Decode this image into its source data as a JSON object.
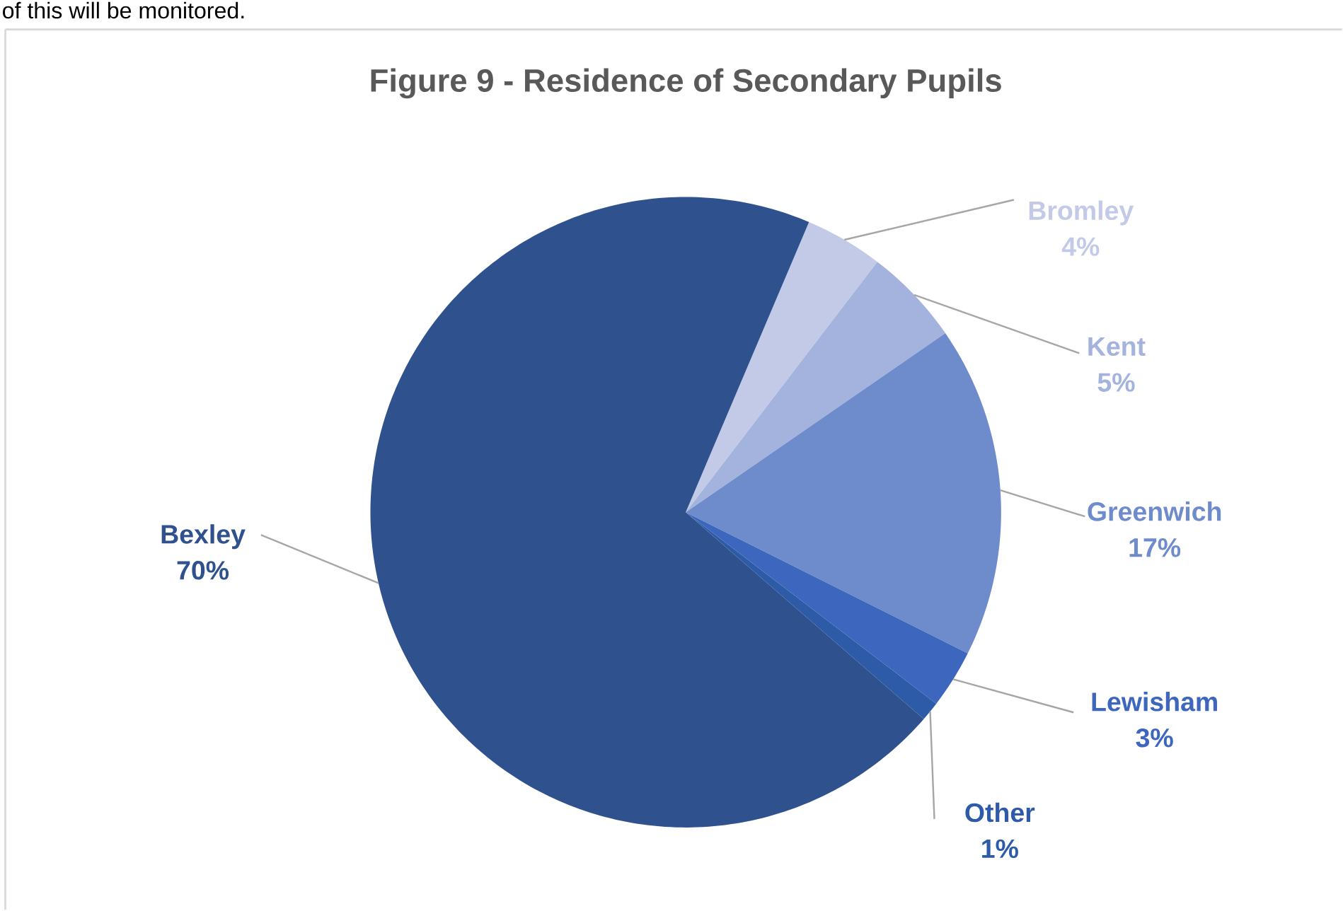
{
  "chart_data": {
    "type": "pie",
    "title": "Figure 9 - Residence of Secondary Pupils",
    "categories": [
      "Bromley",
      "Kent",
      "Greenwich",
      "Lewisham",
      "Other",
      "Bexley"
    ],
    "values": [
      4,
      5,
      17,
      3,
      1,
      70
    ],
    "value_labels": [
      "4%",
      "5%",
      "17%",
      "3%",
      "1%",
      "70%"
    ],
    "colors": [
      "#c2cae8",
      "#a3b3dd",
      "#6e8bcb",
      "#3d67bf",
      "#2e5ba8",
      "#2f528f"
    ],
    "annotations": [
      "of this will be monitored."
    ]
  }
}
